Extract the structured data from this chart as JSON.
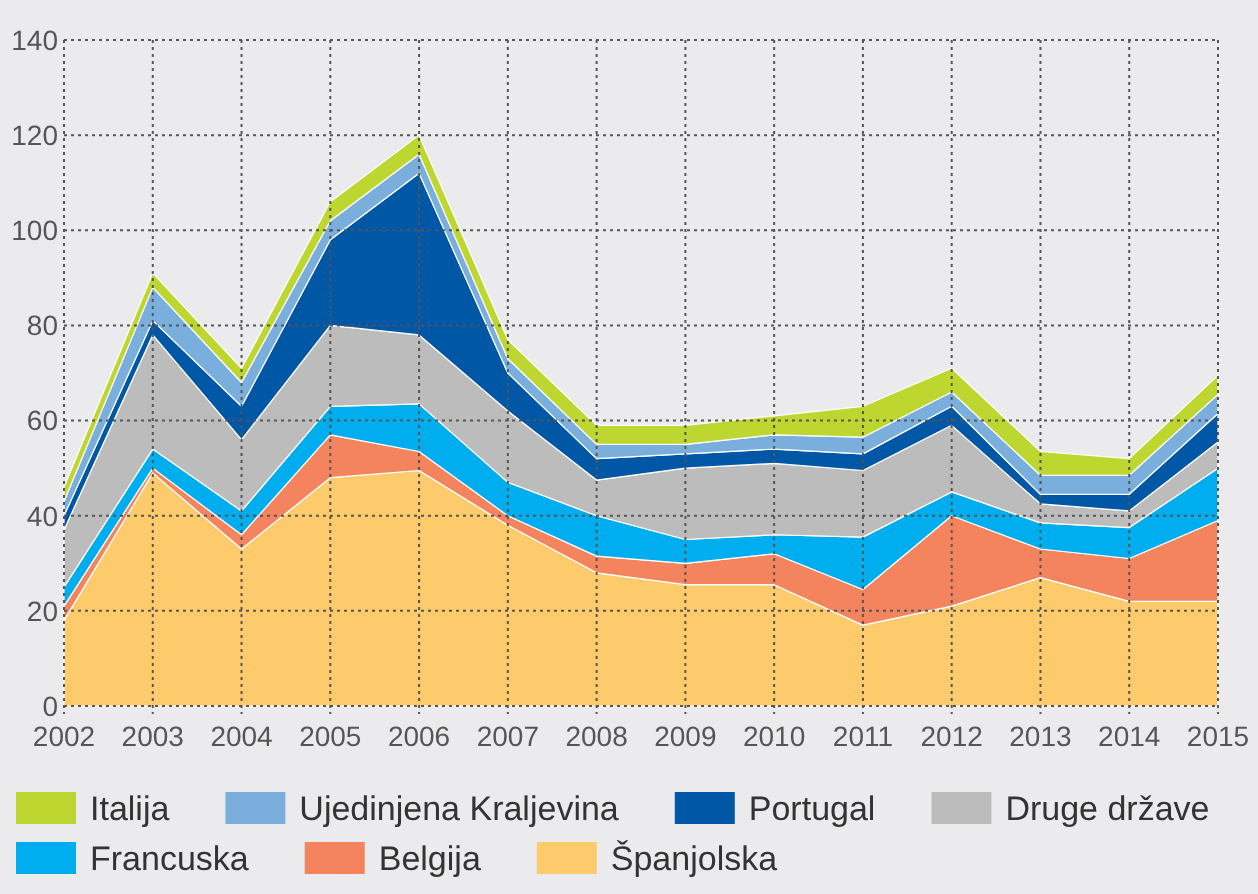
{
  "chart_data": {
    "type": "area",
    "stacked": true,
    "x": [
      2002,
      2003,
      2004,
      2005,
      2006,
      2007,
      2008,
      2009,
      2010,
      2011,
      2012,
      2013,
      2014,
      2015
    ],
    "xlim": [
      2002,
      2015
    ],
    "xticks": [
      2002,
      2003,
      2004,
      2005,
      2006,
      2007,
      2008,
      2009,
      2010,
      2011,
      2012,
      2013,
      2014,
      2015
    ],
    "ylim": [
      0,
      140
    ],
    "yticks": [
      0,
      20,
      40,
      60,
      80,
      100,
      120,
      140
    ],
    "grid": true,
    "legend": "bottom",
    "series": [
      {
        "name": "Španjolska",
        "color": "#fdcb6b",
        "values": [
          18,
          49,
          33,
          48,
          49.5,
          38,
          28,
          25.5,
          25.5,
          17,
          21,
          27,
          22,
          22
        ]
      },
      {
        "name": "Belgija",
        "color": "#f3845e",
        "values": [
          3,
          1,
          3,
          9,
          4,
          2,
          3.5,
          4.5,
          6.5,
          7.5,
          19,
          6,
          9,
          17
        ]
      },
      {
        "name": "Francuska",
        "color": "#00aeef",
        "values": [
          4,
          4,
          5,
          6,
          10,
          7,
          8.5,
          5,
          4,
          11,
          5,
          5.5,
          6.5,
          11
        ]
      },
      {
        "name": "Druge države",
        "color": "#bcbcbc",
        "values": [
          12,
          24,
          15,
          17,
          14.5,
          15,
          7.5,
          15,
          15,
          14,
          14,
          4,
          3.5,
          5.5
        ]
      },
      {
        "name": "Portugal",
        "color": "#0057a5",
        "values": [
          3,
          3,
          7,
          18,
          34,
          8,
          4.5,
          3,
          3,
          3.5,
          4,
          2,
          3.5,
          6
        ]
      },
      {
        "name": "Ujedinjena Kraljevina",
        "color": "#7aaedc",
        "values": [
          3,
          7,
          5,
          4,
          4,
          3,
          3,
          2,
          3,
          3.5,
          3,
          4,
          4,
          4
        ]
      },
      {
        "name": "Italija",
        "color": "#bed630",
        "values": [
          3,
          3,
          3,
          4,
          4,
          4,
          4,
          4,
          4,
          6.5,
          5,
          5,
          3.5,
          4
        ]
      }
    ]
  }
}
